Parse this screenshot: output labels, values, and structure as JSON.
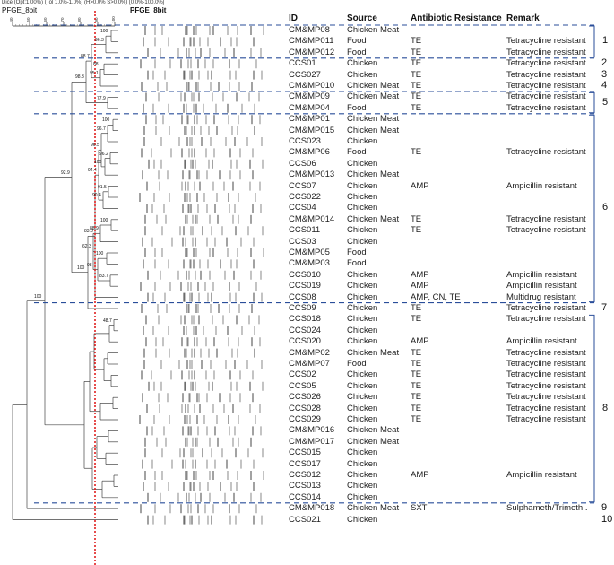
{
  "header": {
    "settings": "Dice (Opt:1.00%) (Tol 1.0%-1.0%) (H>0.0% S>0.0%) [0.0%-100.0%]",
    "experiment": "PFGE_8bit",
    "gel_title": "PFGE_8bit",
    "scale_ticks": [
      "40",
      "50",
      "60",
      "70",
      "80",
      "90",
      "100"
    ]
  },
  "columns": {
    "id": "ID",
    "source": "Source",
    "resistance": "Antibiotic Resistance",
    "remark": "Remark"
  },
  "rows": [
    {
      "id": "CM&MP08",
      "source": "Chicken Meat",
      "resistance": "",
      "remark": ""
    },
    {
      "id": "CM&MP011",
      "source": "Food",
      "resistance": "TE",
      "remark": "Tetracycline resistant"
    },
    {
      "id": "CM&MP012",
      "source": "Food",
      "resistance": "TE",
      "remark": "Tetracycline resistant"
    },
    {
      "id": "CCS01",
      "source": "Chicken",
      "resistance": "TE",
      "remark": "Tetracycline resistant"
    },
    {
      "id": "CCS027",
      "source": "Chicken",
      "resistance": "TE",
      "remark": "Tetracycline resistant"
    },
    {
      "id": "CM&MP010",
      "source": "Chicken Meat",
      "resistance": "TE",
      "remark": "Tetracycline resistant"
    },
    {
      "id": "CM&MP09",
      "source": "Chicken Meat",
      "resistance": "TE",
      "remark": "Tetracycline resistant"
    },
    {
      "id": "CM&MP04",
      "source": "Food",
      "resistance": "TE",
      "remark": "Tetracycline resistant"
    },
    {
      "id": "CM&MP01",
      "source": "Chicken Meat",
      "resistance": "",
      "remark": ""
    },
    {
      "id": "CM&MP015",
      "source": "Chicken Meat",
      "resistance": "",
      "remark": ""
    },
    {
      "id": "CCS023",
      "source": "Chicken",
      "resistance": "",
      "remark": ""
    },
    {
      "id": "CM&MP06",
      "source": "Food",
      "resistance": "TE",
      "remark": "Tetracycline resistant"
    },
    {
      "id": "CCS06",
      "source": "Chicken",
      "resistance": "",
      "remark": ""
    },
    {
      "id": "CM&MP013",
      "source": "Chicken Meat",
      "resistance": "",
      "remark": ""
    },
    {
      "id": "CCS07",
      "source": "Chicken",
      "resistance": "AMP",
      "remark": "Ampicillin resistant"
    },
    {
      "id": "CCS022",
      "source": "Chicken",
      "resistance": "",
      "remark": ""
    },
    {
      "id": "CCS04",
      "source": "Chicken",
      "resistance": "",
      "remark": ""
    },
    {
      "id": "CM&MP014",
      "source": "Chicken Meat",
      "resistance": "TE",
      "remark": "Tetracycline resistant"
    },
    {
      "id": "CCS011",
      "source": "Chicken",
      "resistance": "TE",
      "remark": "Tetracycline resistant"
    },
    {
      "id": "CCS03",
      "source": "Chicken",
      "resistance": "",
      "remark": ""
    },
    {
      "id": "CM&MP05",
      "source": "Food",
      "resistance": "",
      "remark": ""
    },
    {
      "id": "CM&MP03",
      "source": "Food",
      "resistance": "",
      "remark": ""
    },
    {
      "id": "CCS010",
      "source": "Chicken",
      "resistance": "AMP",
      "remark": "Ampicillin resistant"
    },
    {
      "id": "CCS019",
      "source": "Chicken",
      "resistance": "AMP",
      "remark": "Ampicillin resistant"
    },
    {
      "id": "CCS08",
      "source": "Chicken",
      "resistance": "AMP, CN, TE",
      "remark": "Multidrug resistant"
    },
    {
      "id": "CCS09",
      "source": "Chicken",
      "resistance": "TE",
      "remark": "Tetracycline resistant"
    },
    {
      "id": "CCS018",
      "source": "Chicken",
      "resistance": "TE",
      "remark": "Tetracycline resistant"
    },
    {
      "id": "CCS024",
      "source": "Chicken",
      "resistance": "",
      "remark": ""
    },
    {
      "id": "CCS020",
      "source": "Chicken",
      "resistance": "AMP",
      "remark": "Ampicillin resistant"
    },
    {
      "id": "CM&MP02",
      "source": "Chicken Meat",
      "resistance": "TE",
      "remark": "Tetracycline resistant"
    },
    {
      "id": "CM&MP07",
      "source": "Food",
      "resistance": "TE",
      "remark": "Tetracycline resistant"
    },
    {
      "id": "CCS02",
      "source": "Chicken",
      "resistance": "TE",
      "remark": "Tetracycline resistant"
    },
    {
      "id": "CCS05",
      "source": "Chicken",
      "resistance": "TE",
      "remark": "Tetracycline resistant"
    },
    {
      "id": "CCS026",
      "source": "Chicken",
      "resistance": "TE",
      "remark": "Tetracycline resistant"
    },
    {
      "id": "CCS028",
      "source": "Chicken",
      "resistance": "TE",
      "remark": "Tetracycline resistant"
    },
    {
      "id": "CCS029",
      "source": "Chicken",
      "resistance": "TE",
      "remark": "Tetracycline resistant"
    },
    {
      "id": "CM&MP016",
      "source": "Chicken Meat",
      "resistance": "",
      "remark": ""
    },
    {
      "id": "CM&MP017",
      "source": "Chicken Meat",
      "resistance": "",
      "remark": ""
    },
    {
      "id": "CCS015",
      "source": "Chicken",
      "resistance": "",
      "remark": ""
    },
    {
      "id": "CCS017",
      "source": "Chicken",
      "resistance": "",
      "remark": ""
    },
    {
      "id": "CCS012",
      "source": "Chicken",
      "resistance": "AMP",
      "remark": "Ampicillin resistant"
    },
    {
      "id": "CCS013",
      "source": "Chicken",
      "resistance": "",
      "remark": ""
    },
    {
      "id": "CCS014",
      "source": "Chicken",
      "resistance": "",
      "remark": ""
    },
    {
      "id": "CM&MP018",
      "source": "Chicken Meat",
      "resistance": "SXT",
      "remark": "Sulphameth/Trimeth ."
    },
    {
      "id": "CCS021",
      "source": "Chicken",
      "resistance": "",
      "remark": ""
    }
  ],
  "groups": [
    {
      "label": "1",
      "bracket": true
    },
    {
      "label": "2",
      "bracket": false
    },
    {
      "label": "3",
      "bracket": false
    },
    {
      "label": "4",
      "bracket": false
    },
    {
      "label": "5",
      "bracket": true
    },
    {
      "label": "6",
      "bracket": true
    },
    {
      "label": "7",
      "bracket": false
    },
    {
      "label": "8",
      "bracket": true
    },
    {
      "label": "9",
      "bracket": false
    },
    {
      "label": "10",
      "bracket": false
    }
  ],
  "branch_labels": [
    "100",
    "96.3",
    "88.7",
    "88",
    "95.1",
    "98.3",
    "77.9",
    "100",
    "96.7",
    "96.5",
    "96.2",
    "100",
    "94.4",
    "92.9",
    "91.5",
    "90.4",
    "100",
    "88.9",
    "83.8",
    "62.3",
    "100",
    "98",
    "100",
    "83.7",
    "100",
    "48.7"
  ],
  "colors": {
    "cutoff_line": "#e02020",
    "group_dash": "#2a4e9a",
    "tree": "#444444",
    "bands": "#555555"
  }
}
